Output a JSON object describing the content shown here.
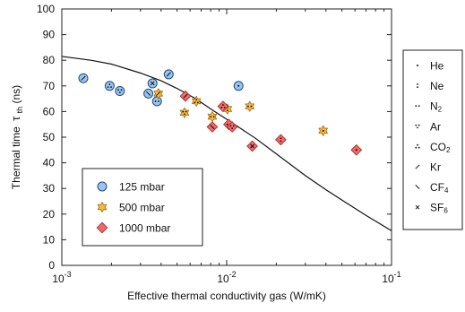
{
  "chart_data": {
    "type": "scatter",
    "xlabel": "Effective thermal conductivity gas (W/mK)",
    "ylabel_main": "Thermal time",
    "ylabel_tau": "τ",
    "ylabel_sub": "th",
    "ylabel_unit": "(ns)",
    "x_scale": "log",
    "xlim": [
      0.001,
      0.1
    ],
    "ylim": [
      0,
      100
    ],
    "x_ticks": [
      {
        "value": 0.001,
        "base": "10",
        "exp": "-3"
      },
      {
        "value": 0.01,
        "base": "10",
        "exp": "-2"
      },
      {
        "value": 0.1,
        "base": "10",
        "exp": "-1"
      }
    ],
    "y_ticks": [
      0,
      10,
      20,
      30,
      40,
      50,
      60,
      70,
      80,
      90,
      100
    ],
    "grid": false,
    "series": [
      {
        "name": "125 mbar",
        "marker": "circle",
        "fill": "#9cc3ea",
        "stroke": "#1c4e8a",
        "points": [
          {
            "x": 0.00135,
            "y": 73,
            "gas": "Kr"
          },
          {
            "x": 0.00195,
            "y": 70,
            "gas": "CO2"
          },
          {
            "x": 0.00225,
            "y": 68,
            "gas": "Ar"
          },
          {
            "x": 0.00335,
            "y": 67,
            "gas": "CF4"
          },
          {
            "x": 0.00355,
            "y": 71,
            "gas": "SF6"
          },
          {
            "x": 0.00378,
            "y": 64,
            "gas": "N2"
          },
          {
            "x": 0.00445,
            "y": 74.5,
            "gas": "Kr"
          },
          {
            "x": 0.0118,
            "y": 70,
            "gas": "He"
          }
        ]
      },
      {
        "name": "500 mbar",
        "marker": "star",
        "fill": "#f4b942",
        "stroke": "#a36a10",
        "points": [
          {
            "x": 0.00385,
            "y": 67,
            "gas": "Kr"
          },
          {
            "x": 0.00555,
            "y": 59.5,
            "gas": "Ar"
          },
          {
            "x": 0.00655,
            "y": 64,
            "gas": "CO2"
          },
          {
            "x": 0.00818,
            "y": 58,
            "gas": "N2"
          },
          {
            "x": 0.0101,
            "y": 61,
            "gas": "Ne"
          },
          {
            "x": 0.0138,
            "y": 62,
            "gas": "N2"
          },
          {
            "x": 0.0385,
            "y": 52.5,
            "gas": "He"
          }
        ]
      },
      {
        "name": "1000 mbar",
        "marker": "diamond",
        "fill": "#ec6a6a",
        "stroke": "#a32424",
        "points": [
          {
            "x": 0.00562,
            "y": 66,
            "gas": "Kr"
          },
          {
            "x": 0.00818,
            "y": 54,
            "gas": "CF4"
          },
          {
            "x": 0.0095,
            "y": 62,
            "gas": "CO2"
          },
          {
            "x": 0.0103,
            "y": 55,
            "gas": "N2"
          },
          {
            "x": 0.0108,
            "y": 54,
            "gas": "Ar"
          },
          {
            "x": 0.0143,
            "y": 46.5,
            "gas": "SF6"
          },
          {
            "x": 0.0213,
            "y": 49,
            "gas": "Ne"
          },
          {
            "x": 0.0612,
            "y": 45,
            "gas": "He"
          }
        ]
      }
    ],
    "model_curve": [
      {
        "x": 0.001,
        "y": 81.5
      },
      {
        "x": 0.0015,
        "y": 80
      },
      {
        "x": 0.002,
        "y": 78.5
      },
      {
        "x": 0.003,
        "y": 75
      },
      {
        "x": 0.004,
        "y": 72
      },
      {
        "x": 0.005,
        "y": 69
      },
      {
        "x": 0.0065,
        "y": 65
      },
      {
        "x": 0.008,
        "y": 61
      },
      {
        "x": 0.01,
        "y": 57
      },
      {
        "x": 0.015,
        "y": 49.5
      },
      {
        "x": 0.02,
        "y": 43.5
      },
      {
        "x": 0.03,
        "y": 35
      },
      {
        "x": 0.04,
        "y": 29.5
      },
      {
        "x": 0.05,
        "y": 25.5
      },
      {
        "x": 0.07,
        "y": 19.5
      },
      {
        "x": 0.1,
        "y": 13.5
      }
    ],
    "legend_pressure": {
      "position": "lower-left",
      "entries": [
        "125 mbar",
        "500 mbar",
        "1000 mbar"
      ]
    },
    "legend_gas": {
      "position": "right",
      "entries": [
        {
          "key": "He",
          "label": "He",
          "sub": ""
        },
        {
          "key": "Ne",
          "label": "Ne",
          "sub": ""
        },
        {
          "key": "N2",
          "label": "N",
          "sub": "2"
        },
        {
          "key": "Ar",
          "label": "Ar",
          "sub": ""
        },
        {
          "key": "CO2",
          "label": "CO",
          "sub": "2"
        },
        {
          "key": "Kr",
          "label": "Kr",
          "sub": ""
        },
        {
          "key": "CF4",
          "label": "CF",
          "sub": "4"
        },
        {
          "key": "SF6",
          "label": "SF",
          "sub": "6"
        }
      ]
    }
  }
}
